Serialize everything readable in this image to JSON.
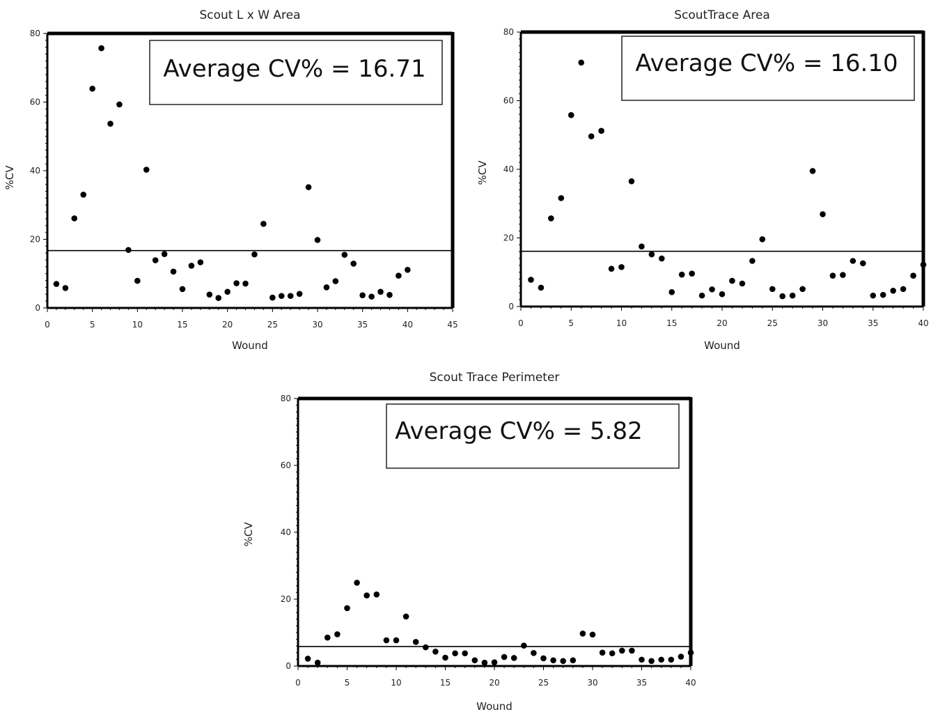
{
  "chart_data": [
    {
      "type": "scatter",
      "title": "Scout L x W Area",
      "xlabel": "Wound",
      "ylabel": "%CV",
      "xlim": [
        0,
        45
      ],
      "ylim": [
        0,
        80
      ],
      "xticks": [
        "0",
        "5",
        "10",
        "15",
        "20",
        "25",
        "30",
        "35",
        "40",
        "45"
      ],
      "yticks": [
        "0",
        "20",
        "40",
        "60",
        "80"
      ],
      "grid": false,
      "reference_line": 16.71,
      "annotation": "Average CV% = 16.71",
      "x": [
        1,
        2,
        3,
        4,
        5,
        6,
        7,
        8,
        9,
        10,
        11,
        12,
        13,
        14,
        15,
        16,
        17,
        18,
        19,
        20,
        21,
        22,
        23,
        24,
        25,
        26,
        27,
        28,
        29,
        30,
        31,
        32,
        33,
        34,
        35,
        36,
        37,
        38,
        39,
        40
      ],
      "y": [
        7.0,
        5.8,
        26.1,
        33.0,
        63.9,
        75.7,
        53.7,
        59.3,
        16.9,
        7.9,
        40.3,
        13.9,
        15.7,
        10.6,
        5.5,
        12.3,
        13.3,
        3.9,
        2.9,
        4.7,
        7.2,
        7.1,
        15.6,
        24.5,
        3.0,
        3.5,
        3.5,
        4.1,
        35.2,
        19.8,
        6.0,
        7.8,
        15.5,
        12.9,
        3.7,
        3.3,
        4.7,
        3.8,
        9.4,
        11.1
      ]
    },
    {
      "type": "scatter",
      "title": "ScoutTrace Area",
      "xlabel": "Wound",
      "ylabel": "%CV",
      "xlim": [
        0,
        40
      ],
      "ylim": [
        0,
        80
      ],
      "xticks": [
        "0",
        "5",
        "10",
        "15",
        "20",
        "25",
        "30",
        "35",
        "40"
      ],
      "yticks": [
        "0",
        "20",
        "40",
        "60",
        "80"
      ],
      "grid": false,
      "reference_line": 16.1,
      "annotation": "Average CV% = 16.10",
      "x": [
        1,
        2,
        3,
        4,
        5,
        6,
        7,
        8,
        9,
        10,
        11,
        12,
        13,
        14,
        15,
        16,
        17,
        18,
        19,
        20,
        21,
        22,
        23,
        24,
        25,
        26,
        27,
        28,
        29,
        30,
        31,
        32,
        33,
        34,
        35,
        36,
        37,
        38,
        39,
        40
      ],
      "y": [
        7.8,
        5.5,
        25.7,
        31.6,
        55.8,
        71.1,
        49.6,
        51.2,
        11.0,
        11.5,
        36.5,
        17.5,
        15.2,
        14.0,
        4.2,
        9.3,
        9.6,
        3.2,
        5.0,
        3.6,
        7.5,
        6.7,
        13.3,
        19.6,
        5.1,
        3.0,
        3.2,
        5.1,
        39.5,
        26.9,
        9.0,
        9.2,
        13.3,
        12.6,
        3.2,
        3.4,
        4.6,
        5.1,
        9.0,
        12.2
      ]
    },
    {
      "type": "scatter",
      "title": "Scout Trace Perimeter",
      "xlabel": "Wound",
      "ylabel": "%CV",
      "xlim": [
        0,
        40
      ],
      "ylim": [
        0,
        80
      ],
      "xticks": [
        "0",
        "5",
        "10",
        "15",
        "20",
        "25",
        "30",
        "35",
        "40"
      ],
      "yticks": [
        "0",
        "20",
        "40",
        "60",
        "80"
      ],
      "grid": false,
      "reference_line": 5.82,
      "annotation": "Average CV% = 5.82",
      "x": [
        1,
        2,
        3,
        4,
        5,
        6,
        7,
        8,
        9,
        10,
        11,
        12,
        13,
        14,
        15,
        16,
        17,
        18,
        19,
        20,
        21,
        22,
        23,
        24,
        25,
        26,
        27,
        28,
        29,
        30,
        31,
        32,
        33,
        34,
        35,
        36,
        37,
        38,
        39,
        40
      ],
      "y": [
        2.2,
        1.0,
        8.5,
        9.5,
        17.3,
        24.9,
        21.1,
        21.4,
        7.7,
        7.7,
        14.8,
        7.2,
        5.6,
        4.3,
        2.5,
        3.8,
        3.8,
        1.7,
        1.0,
        1.1,
        2.7,
        2.4,
        6.1,
        3.9,
        2.3,
        1.7,
        1.5,
        1.7,
        9.7,
        9.4,
        4.0,
        3.8,
        4.6,
        4.6,
        1.9,
        1.5,
        1.9,
        1.9,
        2.8,
        4.0
      ]
    }
  ]
}
